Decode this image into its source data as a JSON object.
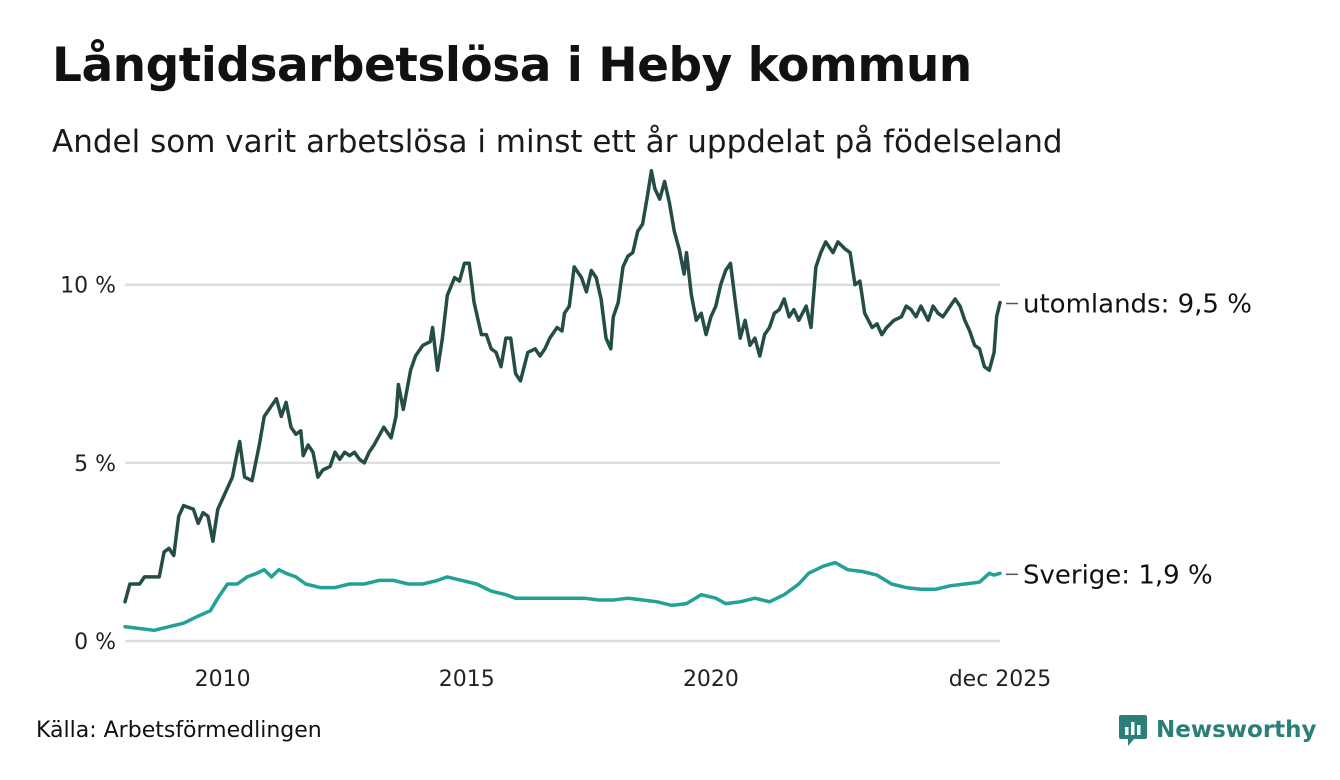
{
  "title": "Långtidsarbetslösa i Heby kommun",
  "subtitle": "Andel som varit arbetslösa i minst ett år uppdelat på födelseland",
  "source": "Källa: Arbetsförmedlingen",
  "brand": "Newsworthy",
  "colors": {
    "utomlands": "#234d45",
    "sverige": "#22a195",
    "grid": "#dddddd",
    "brand": "#2a7f78"
  },
  "chart_data": {
    "type": "line",
    "title": "Långtidsarbetslösa i Heby kommun",
    "xlabel": "",
    "ylabel": "",
    "xlim": [
      2008.0,
      2025.92
    ],
    "ylim": [
      0,
      13.5
    ],
    "y_ticks": [
      0,
      5,
      10
    ],
    "y_tick_labels": [
      "0 %",
      "5 %",
      "10 %"
    ],
    "x_ticks": [
      2010,
      2015,
      2020,
      2025.92
    ],
    "x_tick_labels": [
      "2010",
      "2015",
      "2020",
      "dec 2025"
    ],
    "grid": true,
    "series": [
      {
        "name": "utomlands",
        "label": "utomlands: 9,5 %",
        "color": "#234d45",
        "points": [
          [
            2008.0,
            1.1
          ],
          [
            2008.1,
            1.6
          ],
          [
            2008.3,
            1.6
          ],
          [
            2008.4,
            1.8
          ],
          [
            2008.7,
            1.8
          ],
          [
            2008.8,
            2.5
          ],
          [
            2008.9,
            2.6
          ],
          [
            2009.0,
            2.4
          ],
          [
            2009.1,
            3.5
          ],
          [
            2009.2,
            3.8
          ],
          [
            2009.4,
            3.7
          ],
          [
            2009.5,
            3.3
          ],
          [
            2009.6,
            3.6
          ],
          [
            2009.7,
            3.5
          ],
          [
            2009.8,
            2.8
          ],
          [
            2009.9,
            3.7
          ],
          [
            2010.0,
            4.0
          ],
          [
            2010.2,
            4.6
          ],
          [
            2010.3,
            5.3
          ],
          [
            2010.35,
            5.6
          ],
          [
            2010.45,
            4.6
          ],
          [
            2010.6,
            4.5
          ],
          [
            2010.75,
            5.5
          ],
          [
            2010.85,
            6.3
          ],
          [
            2011.0,
            6.6
          ],
          [
            2011.1,
            6.8
          ],
          [
            2011.2,
            6.3
          ],
          [
            2011.3,
            6.7
          ],
          [
            2011.4,
            6.0
          ],
          [
            2011.5,
            5.8
          ],
          [
            2011.6,
            5.9
          ],
          [
            2011.65,
            5.2
          ],
          [
            2011.75,
            5.5
          ],
          [
            2011.85,
            5.3
          ],
          [
            2011.95,
            4.6
          ],
          [
            2012.05,
            4.8
          ],
          [
            2012.2,
            4.9
          ],
          [
            2012.3,
            5.3
          ],
          [
            2012.4,
            5.1
          ],
          [
            2012.5,
            5.3
          ],
          [
            2012.6,
            5.2
          ],
          [
            2012.7,
            5.3
          ],
          [
            2012.8,
            5.1
          ],
          [
            2012.9,
            5.0
          ],
          [
            2013.0,
            5.3
          ],
          [
            2013.1,
            5.5
          ],
          [
            2013.3,
            6.0
          ],
          [
            2013.45,
            5.7
          ],
          [
            2013.55,
            6.3
          ],
          [
            2013.6,
            7.2
          ],
          [
            2013.7,
            6.5
          ],
          [
            2013.85,
            7.6
          ],
          [
            2013.95,
            8.0
          ],
          [
            2014.1,
            8.3
          ],
          [
            2014.25,
            8.4
          ],
          [
            2014.3,
            8.8
          ],
          [
            2014.4,
            7.6
          ],
          [
            2014.5,
            8.5
          ],
          [
            2014.6,
            9.7
          ],
          [
            2014.75,
            10.2
          ],
          [
            2014.85,
            10.1
          ],
          [
            2014.95,
            10.6
          ],
          [
            2015.05,
            10.6
          ],
          [
            2015.15,
            9.5
          ],
          [
            2015.3,
            8.6
          ],
          [
            2015.4,
            8.6
          ],
          [
            2015.5,
            8.2
          ],
          [
            2015.6,
            8.1
          ],
          [
            2015.7,
            7.7
          ],
          [
            2015.8,
            8.5
          ],
          [
            2015.9,
            8.5
          ],
          [
            2016.0,
            7.5
          ],
          [
            2016.1,
            7.3
          ],
          [
            2016.25,
            8.1
          ],
          [
            2016.4,
            8.2
          ],
          [
            2016.5,
            8.0
          ],
          [
            2016.6,
            8.2
          ],
          [
            2016.7,
            8.5
          ],
          [
            2016.85,
            8.8
          ],
          [
            2016.95,
            8.7
          ],
          [
            2017.0,
            9.2
          ],
          [
            2017.1,
            9.4
          ],
          [
            2017.2,
            10.5
          ],
          [
            2017.35,
            10.2
          ],
          [
            2017.45,
            9.8
          ],
          [
            2017.55,
            10.4
          ],
          [
            2017.65,
            10.2
          ],
          [
            2017.75,
            9.6
          ],
          [
            2017.85,
            8.5
          ],
          [
            2017.95,
            8.2
          ],
          [
            2018.0,
            9.1
          ],
          [
            2018.1,
            9.5
          ],
          [
            2018.2,
            10.5
          ],
          [
            2018.3,
            10.8
          ],
          [
            2018.4,
            10.9
          ],
          [
            2018.5,
            11.5
          ],
          [
            2018.6,
            11.7
          ],
          [
            2018.7,
            12.5
          ],
          [
            2018.78,
            13.2
          ],
          [
            2018.85,
            12.7
          ],
          [
            2018.95,
            12.4
          ],
          [
            2019.05,
            12.9
          ],
          [
            2019.15,
            12.3
          ],
          [
            2019.25,
            11.5
          ],
          [
            2019.35,
            11.0
          ],
          [
            2019.45,
            10.3
          ],
          [
            2019.5,
            10.9
          ],
          [
            2019.6,
            9.7
          ],
          [
            2019.7,
            9.0
          ],
          [
            2019.8,
            9.2
          ],
          [
            2019.9,
            8.6
          ],
          [
            2020.0,
            9.1
          ],
          [
            2020.1,
            9.4
          ],
          [
            2020.2,
            10.0
          ],
          [
            2020.3,
            10.4
          ],
          [
            2020.4,
            10.6
          ],
          [
            2020.5,
            9.5
          ],
          [
            2020.6,
            8.5
          ],
          [
            2020.7,
            9.0
          ],
          [
            2020.8,
            8.3
          ],
          [
            2020.9,
            8.5
          ],
          [
            2021.0,
            8.0
          ],
          [
            2021.1,
            8.6
          ],
          [
            2021.2,
            8.8
          ],
          [
            2021.3,
            9.2
          ],
          [
            2021.4,
            9.3
          ],
          [
            2021.5,
            9.6
          ],
          [
            2021.6,
            9.1
          ],
          [
            2021.7,
            9.3
          ],
          [
            2021.8,
            9.0
          ],
          [
            2021.95,
            9.4
          ],
          [
            2022.05,
            8.8
          ],
          [
            2022.15,
            10.5
          ],
          [
            2022.25,
            10.9
          ],
          [
            2022.35,
            11.2
          ],
          [
            2022.5,
            10.9
          ],
          [
            2022.6,
            11.2
          ],
          [
            2022.75,
            11.0
          ],
          [
            2022.85,
            10.9
          ],
          [
            2022.95,
            10.0
          ],
          [
            2023.05,
            10.1
          ],
          [
            2023.15,
            9.2
          ],
          [
            2023.3,
            8.8
          ],
          [
            2023.4,
            8.9
          ],
          [
            2023.5,
            8.6
          ],
          [
            2023.6,
            8.8
          ],
          [
            2023.75,
            9.0
          ],
          [
            2023.9,
            9.1
          ],
          [
            2024.0,
            9.4
          ],
          [
            2024.1,
            9.3
          ],
          [
            2024.2,
            9.1
          ],
          [
            2024.3,
            9.4
          ],
          [
            2024.45,
            9.0
          ],
          [
            2024.55,
            9.4
          ],
          [
            2024.65,
            9.2
          ],
          [
            2024.75,
            9.1
          ],
          [
            2024.9,
            9.4
          ],
          [
            2025.0,
            9.6
          ],
          [
            2025.1,
            9.4
          ],
          [
            2025.2,
            9.0
          ],
          [
            2025.3,
            8.7
          ],
          [
            2025.4,
            8.3
          ],
          [
            2025.5,
            8.2
          ],
          [
            2025.6,
            7.7
          ],
          [
            2025.7,
            7.6
          ],
          [
            2025.8,
            8.1
          ],
          [
            2025.85,
            9.1
          ],
          [
            2025.92,
            9.5
          ]
        ]
      },
      {
        "name": "Sverige",
        "label": "Sverige: 1,9 %",
        "color": "#22a195",
        "points": [
          [
            2008.0,
            0.4
          ],
          [
            2008.3,
            0.35
          ],
          [
            2008.6,
            0.3
          ],
          [
            2008.9,
            0.4
          ],
          [
            2009.2,
            0.5
          ],
          [
            2009.5,
            0.7
          ],
          [
            2009.75,
            0.85
          ],
          [
            2009.9,
            1.2
          ],
          [
            2010.1,
            1.6
          ],
          [
            2010.3,
            1.6
          ],
          [
            2010.5,
            1.8
          ],
          [
            2010.7,
            1.9
          ],
          [
            2010.85,
            2.0
          ],
          [
            2011.0,
            1.8
          ],
          [
            2011.15,
            2.0
          ],
          [
            2011.3,
            1.9
          ],
          [
            2011.5,
            1.8
          ],
          [
            2011.7,
            1.6
          ],
          [
            2012.0,
            1.5
          ],
          [
            2012.3,
            1.5
          ],
          [
            2012.6,
            1.6
          ],
          [
            2012.9,
            1.6
          ],
          [
            2013.2,
            1.7
          ],
          [
            2013.5,
            1.7
          ],
          [
            2013.8,
            1.6
          ],
          [
            2014.1,
            1.6
          ],
          [
            2014.4,
            1.7
          ],
          [
            2014.6,
            1.8
          ],
          [
            2014.9,
            1.7
          ],
          [
            2015.2,
            1.6
          ],
          [
            2015.5,
            1.4
          ],
          [
            2015.8,
            1.3
          ],
          [
            2016.0,
            1.2
          ],
          [
            2016.2,
            1.2
          ],
          [
            2016.5,
            1.2
          ],
          [
            2016.8,
            1.2
          ],
          [
            2017.1,
            1.2
          ],
          [
            2017.4,
            1.2
          ],
          [
            2017.7,
            1.15
          ],
          [
            2018.0,
            1.15
          ],
          [
            2018.3,
            1.2
          ],
          [
            2018.6,
            1.15
          ],
          [
            2018.9,
            1.1
          ],
          [
            2019.2,
            1.0
          ],
          [
            2019.5,
            1.05
          ],
          [
            2019.8,
            1.3
          ],
          [
            2020.1,
            1.2
          ],
          [
            2020.3,
            1.05
          ],
          [
            2020.6,
            1.1
          ],
          [
            2020.9,
            1.2
          ],
          [
            2021.2,
            1.1
          ],
          [
            2021.5,
            1.3
          ],
          [
            2021.8,
            1.6
          ],
          [
            2022.0,
            1.9
          ],
          [
            2022.3,
            2.1
          ],
          [
            2022.55,
            2.2
          ],
          [
            2022.8,
            2.0
          ],
          [
            2023.1,
            1.95
          ],
          [
            2023.4,
            1.85
          ],
          [
            2023.7,
            1.6
          ],
          [
            2024.0,
            1.5
          ],
          [
            2024.3,
            1.45
          ],
          [
            2024.6,
            1.45
          ],
          [
            2024.9,
            1.55
          ],
          [
            2025.2,
            1.6
          ],
          [
            2025.5,
            1.65
          ],
          [
            2025.7,
            1.9
          ],
          [
            2025.8,
            1.85
          ],
          [
            2025.92,
            1.9
          ]
        ]
      }
    ]
  }
}
